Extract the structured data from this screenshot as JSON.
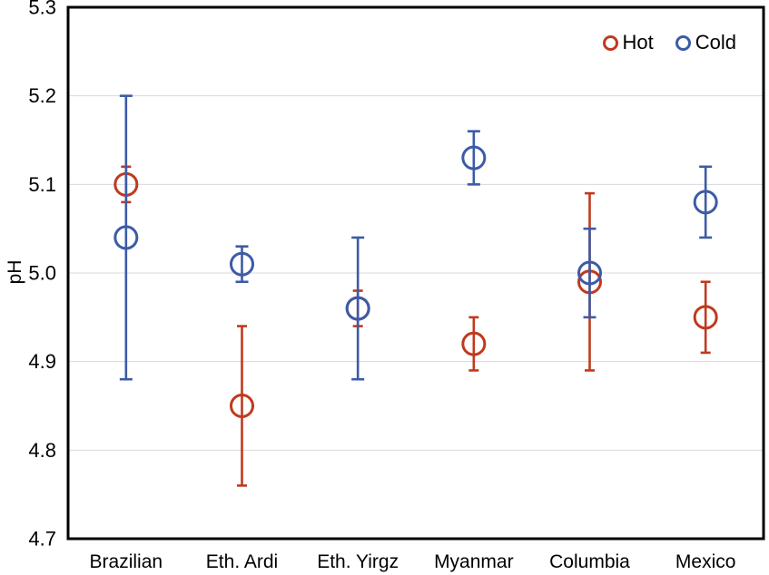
{
  "figure": {
    "background": "#ffffff",
    "plot_border_color": "#000000",
    "gridline_color": "#d9d9d9",
    "text_color": "#000000"
  },
  "chart_data": {
    "type": "scatter",
    "title": "",
    "xlabel": "",
    "ylabel": "pH",
    "ylim": [
      4.7,
      5.3
    ],
    "ytick_step": 0.1,
    "ytick_labels": [
      "5.3",
      "5.2",
      "5.1",
      "5.0",
      "4.9",
      "4.8",
      "4.7"
    ],
    "grid": "horizontal",
    "legend_position": "top-right-inside",
    "marker_style": "open-circle",
    "error_bars": "symmetric, with caps",
    "categories": [
      "Brazilian",
      "Eth. Ardi",
      "Eth. Yirgz",
      "Myanmar",
      "Columbia",
      "Mexico"
    ],
    "series": [
      {
        "name": "Hot",
        "color": "#bf3a1e",
        "values": [
          5.1,
          4.85,
          4.96,
          4.92,
          4.99,
          4.95
        ],
        "error": [
          0.02,
          0.09,
          0.02,
          0.03,
          0.1,
          0.04
        ]
      },
      {
        "name": "Cold",
        "color": "#3c5ba7",
        "values": [
          5.04,
          5.01,
          4.96,
          5.13,
          5.0,
          5.08
        ],
        "error": [
          0.16,
          0.02,
          0.08,
          0.03,
          0.05,
          0.04
        ]
      }
    ],
    "notes": "Hot series drawn first, Cold drawn on top; at Eth. Yirgz the Hot marker (4.96) is hidden behind the Cold marker (4.96)."
  }
}
